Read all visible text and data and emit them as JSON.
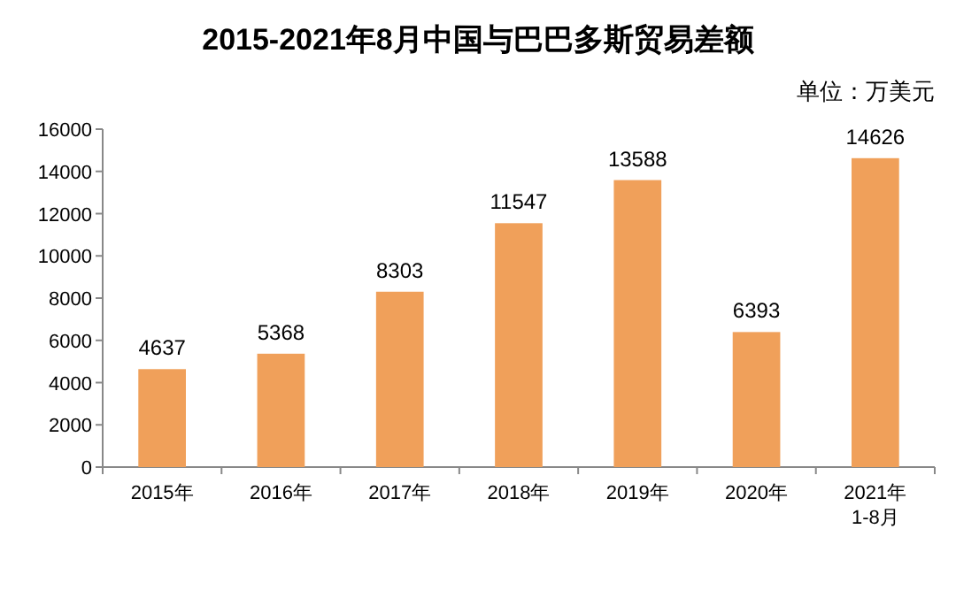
{
  "chart_data": {
    "type": "bar",
    "title": "2015-2021年8月中国与巴巴多斯贸易差额",
    "annotations": [
      "单位：万美元"
    ],
    "categories": [
      "2015年",
      "2016年",
      "2017年",
      "2018年",
      "2019年",
      "2020年",
      "2021年\n1-8月"
    ],
    "values": [
      4637,
      5368,
      8303,
      11547,
      13588,
      6393,
      14626
    ],
    "color": "#f0a05a",
    "ylim": [
      0,
      16000
    ],
    "yticks": [
      0,
      2000,
      4000,
      6000,
      8000,
      10000,
      12000,
      14000,
      16000
    ],
    "data_labels": true
  }
}
